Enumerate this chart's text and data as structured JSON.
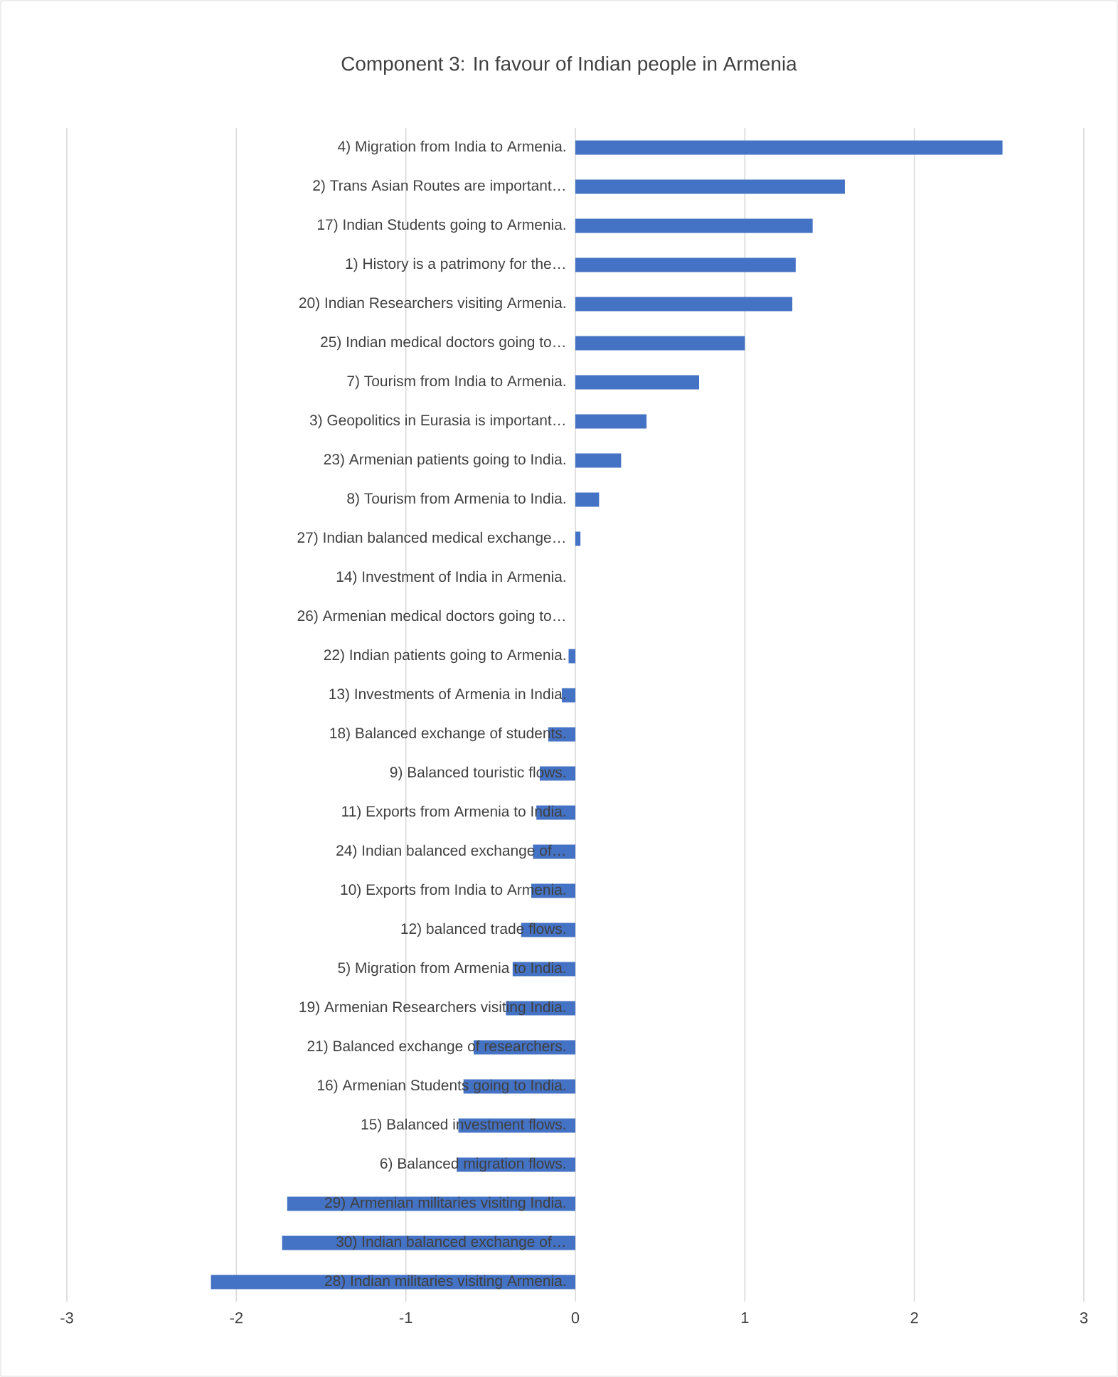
{
  "chart_data": {
    "type": "bar",
    "orientation": "horizontal",
    "title": "Component 3: In favour of  Indian people in Armenia",
    "categories": [
      "4)  Migration from India to Armenia.",
      "2) Trans Asian Routes are important…",
      "17)  Indian Students going to Armenia.",
      "1) History is a patrimony for the…",
      "20)  Indian Researchers visiting Armenia.",
      "25)  Indian medical doctors going to…",
      "7)  Tourism from India to Armenia.",
      "3) Geopolitics in Eurasia is important…",
      "23)  Armenian patients going to India.",
      "8)  Tourism from Armenia to India.",
      "27)  Indian balanced medical exchange…",
      "14)  Investment of India in Armenia.",
      "26)  Armenian medical doctors going to…",
      "22)  Indian patients going to Armenia.",
      "13)  Investments of Armenia in India.",
      "18)  Balanced exchange of students.",
      "9)  Balanced touristic flows.",
      "11)  Exports from Armenia to India.",
      "24)  Indian balanced exchange of…",
      "10)  Exports from India to Armenia.",
      "12)  balanced trade flows.",
      "5)  Migration from Armenia to India.",
      "19)  Armenian Researchers visiting India.",
      "21)  Balanced exchange of researchers.",
      "16)  Armenian Students going to India.",
      "15)  Balanced investment flows.",
      "6)  Balanced migration flows.",
      "29)  Armenian militaries visiting India.",
      "30)  Indian balanced exchange of…",
      "28)  Indian militaries visiting Armenia."
    ],
    "values": [
      2.52,
      1.59,
      1.4,
      1.3,
      1.28,
      1.0,
      0.73,
      0.42,
      0.27,
      0.14,
      0.03,
      0.0,
      0.0,
      -0.04,
      -0.08,
      -0.16,
      -0.21,
      -0.23,
      -0.25,
      -0.26,
      -0.32,
      -0.37,
      -0.41,
      -0.6,
      -0.66,
      -0.69,
      -0.7,
      -1.7,
      -1.73,
      -2.15
    ],
    "color": "#4472c4",
    "xlim": [
      -3,
      3
    ],
    "xticks": [
      -3,
      -2,
      -1,
      0,
      1,
      2,
      3
    ],
    "grid": "x"
  }
}
